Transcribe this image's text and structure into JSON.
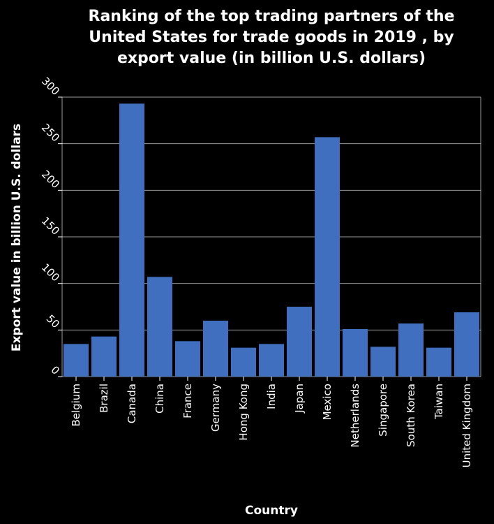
{
  "chart_data": {
    "type": "bar",
    "title_lines": [
      "Ranking of the top trading partners of the",
      "United States for trade goods in 2019 , by",
      "export value (in billion U.S. dollars)"
    ],
    "xlabel": "Country",
    "ylabel": "Export value in billion U.S. dollars",
    "ylim": [
      0,
      300
    ],
    "yticks": [
      0,
      50,
      100,
      150,
      200,
      250,
      300
    ],
    "grid": true,
    "categories": [
      "Belgium",
      "Brazil",
      "Canada",
      "China",
      "France",
      "Germany",
      "Hong Kong",
      "India",
      "Japan",
      "Mexico",
      "Netherlands",
      "Singapore",
      "South Korea",
      "Taiwan",
      "United Kingdom"
    ],
    "values": [
      35,
      43,
      293,
      107,
      38,
      60,
      31,
      35,
      75,
      257,
      51,
      32,
      57,
      31,
      69
    ],
    "bar_color": "#3f6fbe",
    "background": "#000000"
  }
}
